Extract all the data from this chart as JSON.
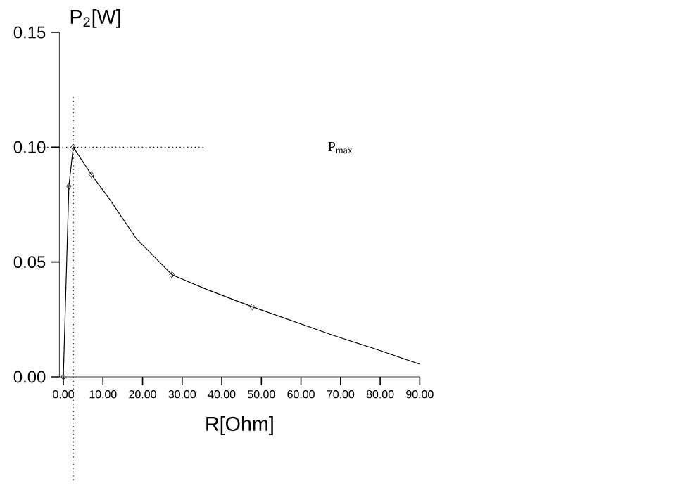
{
  "chart_data": {
    "type": "line",
    "xlabel": "R[Ohm]",
    "ylabel": "P$_{2}$[W]",
    "xlim": [
      -1,
      90
    ],
    "ylim": [
      0,
      0.15
    ],
    "xticks": [
      {
        "value": 0,
        "label": "0.00"
      },
      {
        "value": 10,
        "label": "10.00"
      },
      {
        "value": 20,
        "label": "20.00"
      },
      {
        "value": 30,
        "label": "30.00"
      },
      {
        "value": 40,
        "label": "40.00"
      },
      {
        "value": 50,
        "label": "50.00"
      },
      {
        "value": 60,
        "label": "60.00"
      },
      {
        "value": 70,
        "label": "70.00"
      },
      {
        "value": 80,
        "label": "80.00"
      },
      {
        "value": 90,
        "label": "90.00"
      }
    ],
    "yticks": [
      {
        "value": 0,
        "label": "0.00"
      },
      {
        "value": 0.05,
        "label": "0.05"
      },
      {
        "value": 0.1,
        "label": "0.10"
      },
      {
        "value": 0.15,
        "label": "0.15"
      }
    ],
    "series": [
      {
        "color": "#000000",
        "marker": "none",
        "x": [
          0,
          1.4,
          2.5,
          7.1,
          11.4,
          18.5,
          22,
          27.4,
          36.3,
          47.7,
          68.3,
          79,
          90
        ],
        "values": [
          0,
          0.083,
          0.1,
          0.088,
          0.078,
          0.06,
          0.054,
          0.0445,
          0.038,
          0.0305,
          0.018,
          0.012,
          0.0055
        ]
      },
      {
        "type": "scatter",
        "color": "#000000",
        "marker": "diamond",
        "x": [
          0,
          1.4,
          2.5,
          7.1,
          27.4,
          47.7
        ],
        "values": [
          0,
          0.083,
          0.1,
          0.088,
          0.0445,
          0.0305
        ]
      }
    ],
    "ref_lines": [
      {
        "axis": "y",
        "value": 0.1,
        "line_style": "dotted",
        "color": "#000000"
      },
      {
        "axis": "x",
        "value": 2.5,
        "line_style": "dotted",
        "color": "#000000"
      }
    ],
    "annotations": [
      "P$_{max}$"
    ],
    "grid": false
  }
}
